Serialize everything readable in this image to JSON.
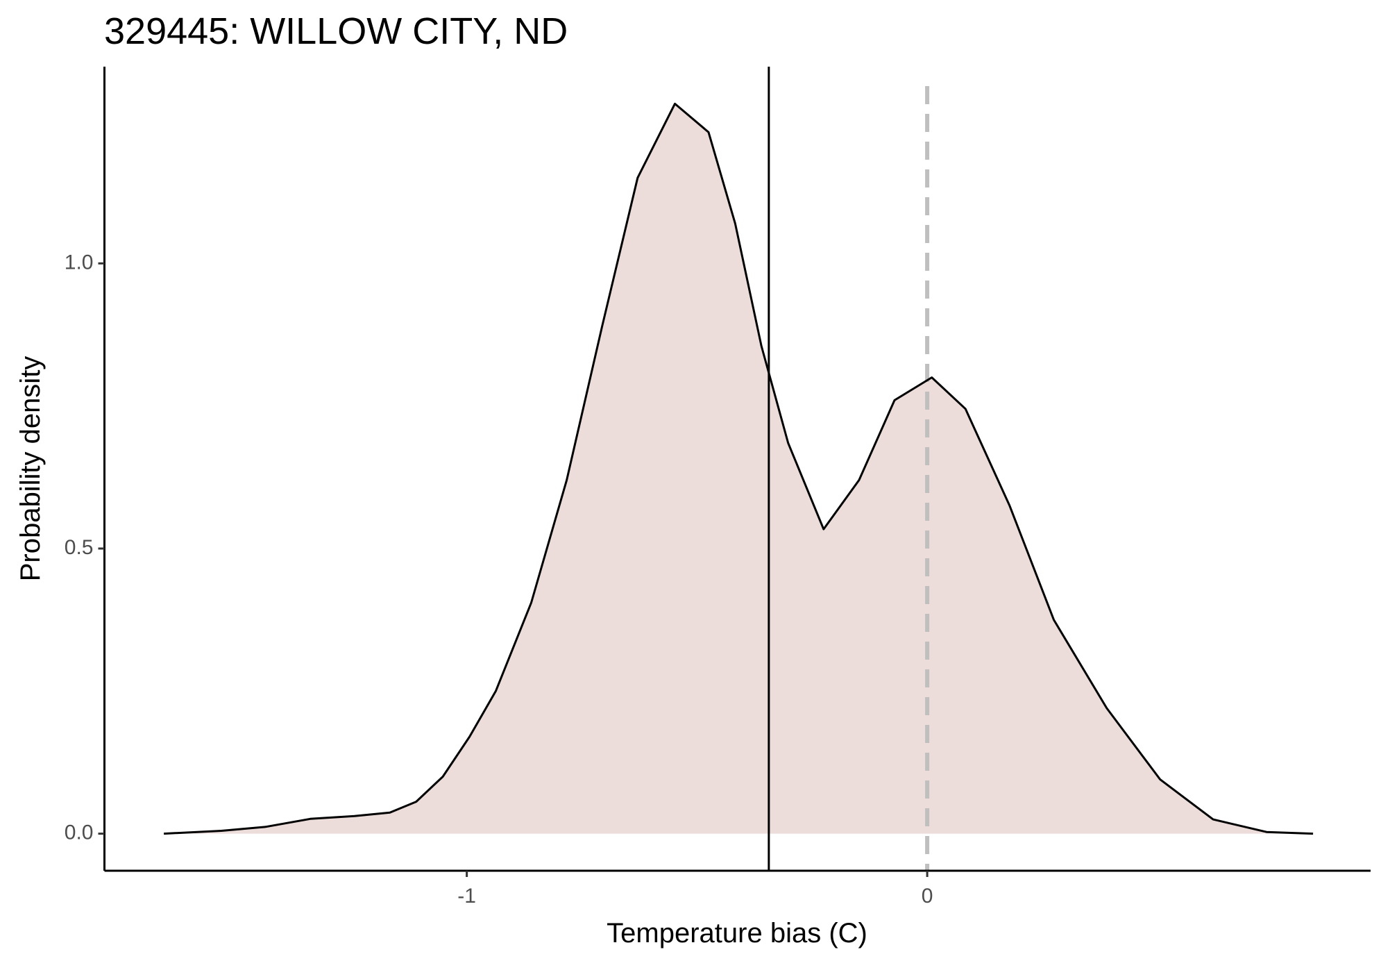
{
  "chart_data": {
    "type": "density",
    "title": "329445: WILLOW CITY, ND",
    "xlabel": "Temperature bias (C)",
    "ylabel": "Probability density",
    "x": [
      -1.658,
      -1.533,
      -1.437,
      -1.34,
      -1.244,
      -1.167,
      -1.11,
      -1.052,
      -0.994,
      -0.937,
      -0.86,
      -0.783,
      -0.706,
      -0.629,
      -0.548,
      -0.475,
      -0.417,
      -0.36,
      -0.302,
      -0.225,
      -0.148,
      -0.071,
      0.01,
      0.083,
      0.179,
      0.275,
      0.39,
      0.506,
      0.621,
      0.737,
      0.838
    ],
    "y": [
      0,
      0.005,
      0.012,
      0.026,
      0.031,
      0.037,
      0.056,
      0.1,
      0.17,
      0.25,
      0.405,
      0.62,
      0.89,
      1.15,
      1.28,
      1.23,
      1.07,
      0.855,
      0.685,
      0.534,
      0.62,
      0.76,
      0.8,
      0.745,
      0.575,
      0.375,
      0.22,
      0.095,
      0.025,
      0.003,
      0
    ],
    "fill": "#ecdcda",
    "line_color": "#000000",
    "reference_lines": [
      {
        "value": -0.344,
        "style": "solid",
        "color": "#000000"
      },
      {
        "value": 0,
        "style": "dashed",
        "color": "#bfbfbf"
      }
    ],
    "xlim": [
      -1.787,
      0.963
    ],
    "ylim": [
      -0.065,
      1.345
    ],
    "xticks": [
      -1,
      0
    ],
    "yticks": [
      {
        "value": 0,
        "label": "0.0"
      },
      0.5,
      {
        "value": 1,
        "label": "1.0"
      }
    ]
  }
}
